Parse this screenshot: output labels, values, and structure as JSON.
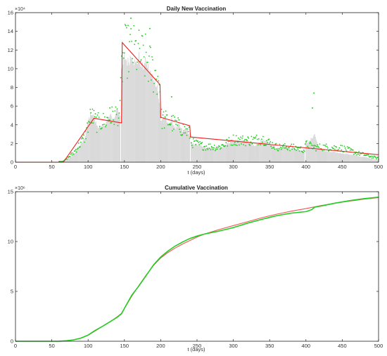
{
  "chart_data": [
    {
      "type": "bar",
      "title": "Daily New Vaccination",
      "xlabel": "t (days)",
      "ylabel": "",
      "y_multiplier_label": "×10⁴",
      "xlim": [
        0,
        500
      ],
      "ylim": [
        0,
        16
      ],
      "xticks": [
        "0",
        "50",
        "100",
        "150",
        "200",
        "250",
        "300",
        "350",
        "400",
        "450",
        "500"
      ],
      "yticks": [
        "0",
        "2",
        "4",
        "6",
        "8",
        "10",
        "12",
        "14",
        "16"
      ],
      "grid": false,
      "series": [
        {
          "kind": "bar",
          "color": "#c0c0c0",
          "segments": [
            {
              "x": [
                0,
                66
              ],
              "y": [
                0,
                0
              ]
            },
            {
              "x": [
                66,
                80,
                95,
                100,
                104,
                108,
                112,
                118,
                124,
                130,
                136,
                140,
                144
              ],
              "y": [
                0.1,
                0.8,
                2.5,
                4.5,
                5.3,
                4.8,
                4.0,
                3.6,
                4.2,
                5.0,
                4.6,
                5.8,
                5.2
              ]
            },
            {
              "x": [
                146,
                150,
                155,
                160,
                165,
                170,
                175,
                180,
                185,
                190,
                195,
                199
              ],
              "y": [
                9.5,
                11.3,
                10.7,
                11.6,
                10.4,
                11.2,
                10.1,
                10.8,
                9.7,
                9.0,
                8.3,
                5.5
              ]
            },
            {
              "x": [
                200,
                205,
                210,
                215,
                220,
                225,
                230,
                235,
                240
              ],
              "y": [
                4.4,
                4.9,
                4.1,
                4.5,
                3.7,
                4.0,
                3.3,
                3.6,
                2.9
              ]
            },
            {
              "x": [
                242,
                250,
                260,
                270,
                280,
                290,
                300,
                310,
                320,
                330,
                340,
                350,
                360,
                370,
                380,
                390,
                398
              ],
              "y": [
                2.0,
                1.9,
                1.6,
                1.6,
                1.5,
                1.9,
                2.3,
                2.4,
                2.2,
                1.7,
                2.4,
                2.0,
                1.5,
                1.7,
                1.5,
                1.3,
                1.2
              ]
            },
            {
              "x": [
                400,
                404,
                408,
                412,
                418,
                425,
                435,
                445,
                455,
                465,
                475,
                485,
                495,
                500
              ],
              "y": [
                2.3,
                2.1,
                2.6,
                3.0,
                1.3,
                1.2,
                1.1,
                1.0,
                0.9,
                0.8,
                0.6,
                0.5,
                0.3,
                0.2
              ]
            }
          ]
        },
        {
          "kind": "line",
          "color": "#ee2222",
          "x": [
            0,
            66,
            108,
            146,
            147,
            199,
            200,
            240,
            241,
            500
          ],
          "y": [
            0,
            0,
            4.7,
            4.2,
            12.8,
            8.3,
            4.8,
            3.9,
            2.7,
            0.8
          ]
        },
        {
          "kind": "scatter",
          "color": "#22cc22",
          "anchors_x": [
            0,
            66,
            80,
            95,
            104,
            112,
            124,
            136,
            144,
            146,
            150,
            160,
            170,
            180,
            190,
            199,
            200,
            210,
            220,
            230,
            240,
            242,
            260,
            280,
            300,
            320,
            340,
            360,
            380,
            398,
            400,
            412,
            430,
            450,
            470,
            490,
            500
          ],
          "anchors_y": [
            0,
            0.1,
            1.0,
            2.6,
            5.0,
            4.2,
            4.4,
            5.0,
            5.3,
            9.8,
            11.8,
            12.0,
            11.5,
            11.0,
            9.6,
            8.8,
            4.7,
            4.4,
            4.0,
            3.6,
            3.0,
            2.1,
            1.7,
            1.6,
            2.4,
            2.3,
            2.5,
            1.6,
            1.6,
            1.3,
            1.9,
            1.6,
            1.6,
            1.5,
            1.0,
            0.6,
            0.4
          ],
          "outliers": [
            {
              "x": 159,
              "y": 15.4
            },
            {
              "x": 185,
              "y": 14.3
            },
            {
              "x": 411,
              "y": 7.4
            },
            {
              "x": 409,
              "y": 5.8
            },
            {
              "x": 130,
              "y": 5.8
            },
            {
              "x": 215,
              "y": 7.0
            }
          ]
        }
      ]
    },
    {
      "type": "line",
      "title": "Cumulative Vaccination",
      "xlabel": "t (days)",
      "ylabel": "",
      "y_multiplier_label": "×10⁶",
      "xlim": [
        0,
        500
      ],
      "ylim": [
        0,
        15
      ],
      "xticks": [
        "0",
        "50",
        "100",
        "150",
        "200",
        "250",
        "300",
        "350",
        "400",
        "450",
        "500"
      ],
      "yticks": [
        "0",
        "5",
        "10",
        "15"
      ],
      "yticks_values": [
        0,
        5,
        10,
        15
      ],
      "grid": false,
      "series": [
        {
          "color": "#ee5555",
          "x": [
            0,
            60,
            70,
            80,
            90,
            100,
            110,
            120,
            130,
            140,
            146,
            150,
            160,
            170,
            180,
            190,
            200,
            210,
            220,
            230,
            240,
            250,
            260,
            280,
            300,
            320,
            340,
            360,
            380,
            400,
            420,
            440,
            460,
            480,
            500
          ],
          "y": [
            0,
            0.01,
            0.05,
            0.13,
            0.3,
            0.6,
            1.05,
            1.5,
            1.95,
            2.45,
            2.8,
            3.3,
            4.5,
            5.6,
            6.65,
            7.6,
            8.35,
            8.9,
            9.35,
            9.75,
            10.1,
            10.45,
            10.75,
            11.2,
            11.6,
            12.0,
            12.4,
            12.75,
            13.05,
            13.3,
            13.6,
            13.85,
            14.05,
            14.25,
            14.4
          ]
        },
        {
          "color": "#22cc22",
          "x": [
            0,
            60,
            70,
            80,
            90,
            100,
            110,
            120,
            130,
            140,
            146,
            150,
            160,
            170,
            180,
            190,
            200,
            210,
            220,
            230,
            240,
            250,
            260,
            280,
            300,
            320,
            340,
            360,
            380,
            400,
            408,
            412,
            420,
            440,
            460,
            480,
            500
          ],
          "y": [
            0,
            0.01,
            0.05,
            0.14,
            0.32,
            0.62,
            1.1,
            1.5,
            1.95,
            2.4,
            2.75,
            3.3,
            4.6,
            5.55,
            6.6,
            7.65,
            8.45,
            9.05,
            9.55,
            9.95,
            10.3,
            10.55,
            10.75,
            11.05,
            11.4,
            11.85,
            12.25,
            12.6,
            12.85,
            13.0,
            13.2,
            13.45,
            13.55,
            13.85,
            14.1,
            14.3,
            14.45
          ]
        }
      ]
    }
  ]
}
